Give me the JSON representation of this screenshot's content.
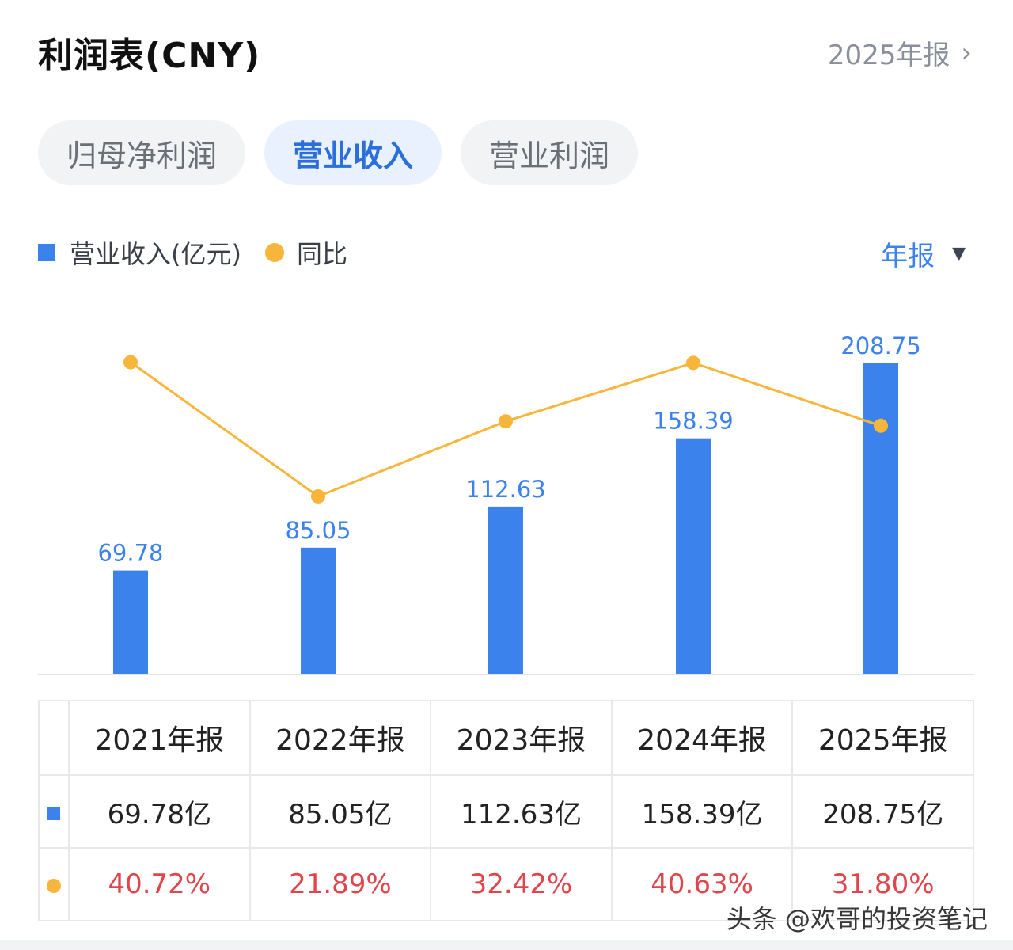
{
  "header": {
    "title": "利润表(CNY)",
    "period_label": "2025年报",
    "chevron": "›"
  },
  "tabs": [
    {
      "label": "归母净利润",
      "active": false
    },
    {
      "label": "营业收入",
      "active": true
    },
    {
      "label": "营业利润",
      "active": false
    }
  ],
  "legend": {
    "bar_label": "营业收入(亿元)",
    "line_label": "同比"
  },
  "frequency": {
    "label": "年报",
    "arrow": "▼"
  },
  "colors": {
    "bar": "#3b82ec",
    "line": "#f7b53b",
    "pct_text": "#e0454b"
  },
  "chart_data": {
    "type": "bar",
    "categories": [
      "2021年报",
      "2022年报",
      "2023年报",
      "2024年报",
      "2025年报"
    ],
    "series": [
      {
        "name": "营业收入(亿元)",
        "type": "bar",
        "values": [
          69.78,
          85.05,
          112.63,
          158.39,
          208.75
        ],
        "labels": [
          "69.78",
          "85.05",
          "112.63",
          "158.39",
          "208.75"
        ]
      },
      {
        "name": "同比",
        "type": "line",
        "values": [
          40.72,
          21.89,
          32.42,
          40.63,
          31.8
        ]
      }
    ],
    "bar_ylim": [
      0,
      240
    ],
    "line_ylim": [
      10,
      50
    ]
  },
  "table": {
    "headers": [
      "2021年报",
      "2022年报",
      "2023年报",
      "2024年报",
      "2025年报"
    ],
    "revenue": [
      "69.78亿",
      "85.05亿",
      "112.63亿",
      "158.39亿",
      "208.75亿"
    ],
    "yoy": [
      "40.72%",
      "21.89%",
      "32.42%",
      "40.63%",
      "31.80%"
    ]
  },
  "watermark": "头条 @欢哥的投资笔记"
}
